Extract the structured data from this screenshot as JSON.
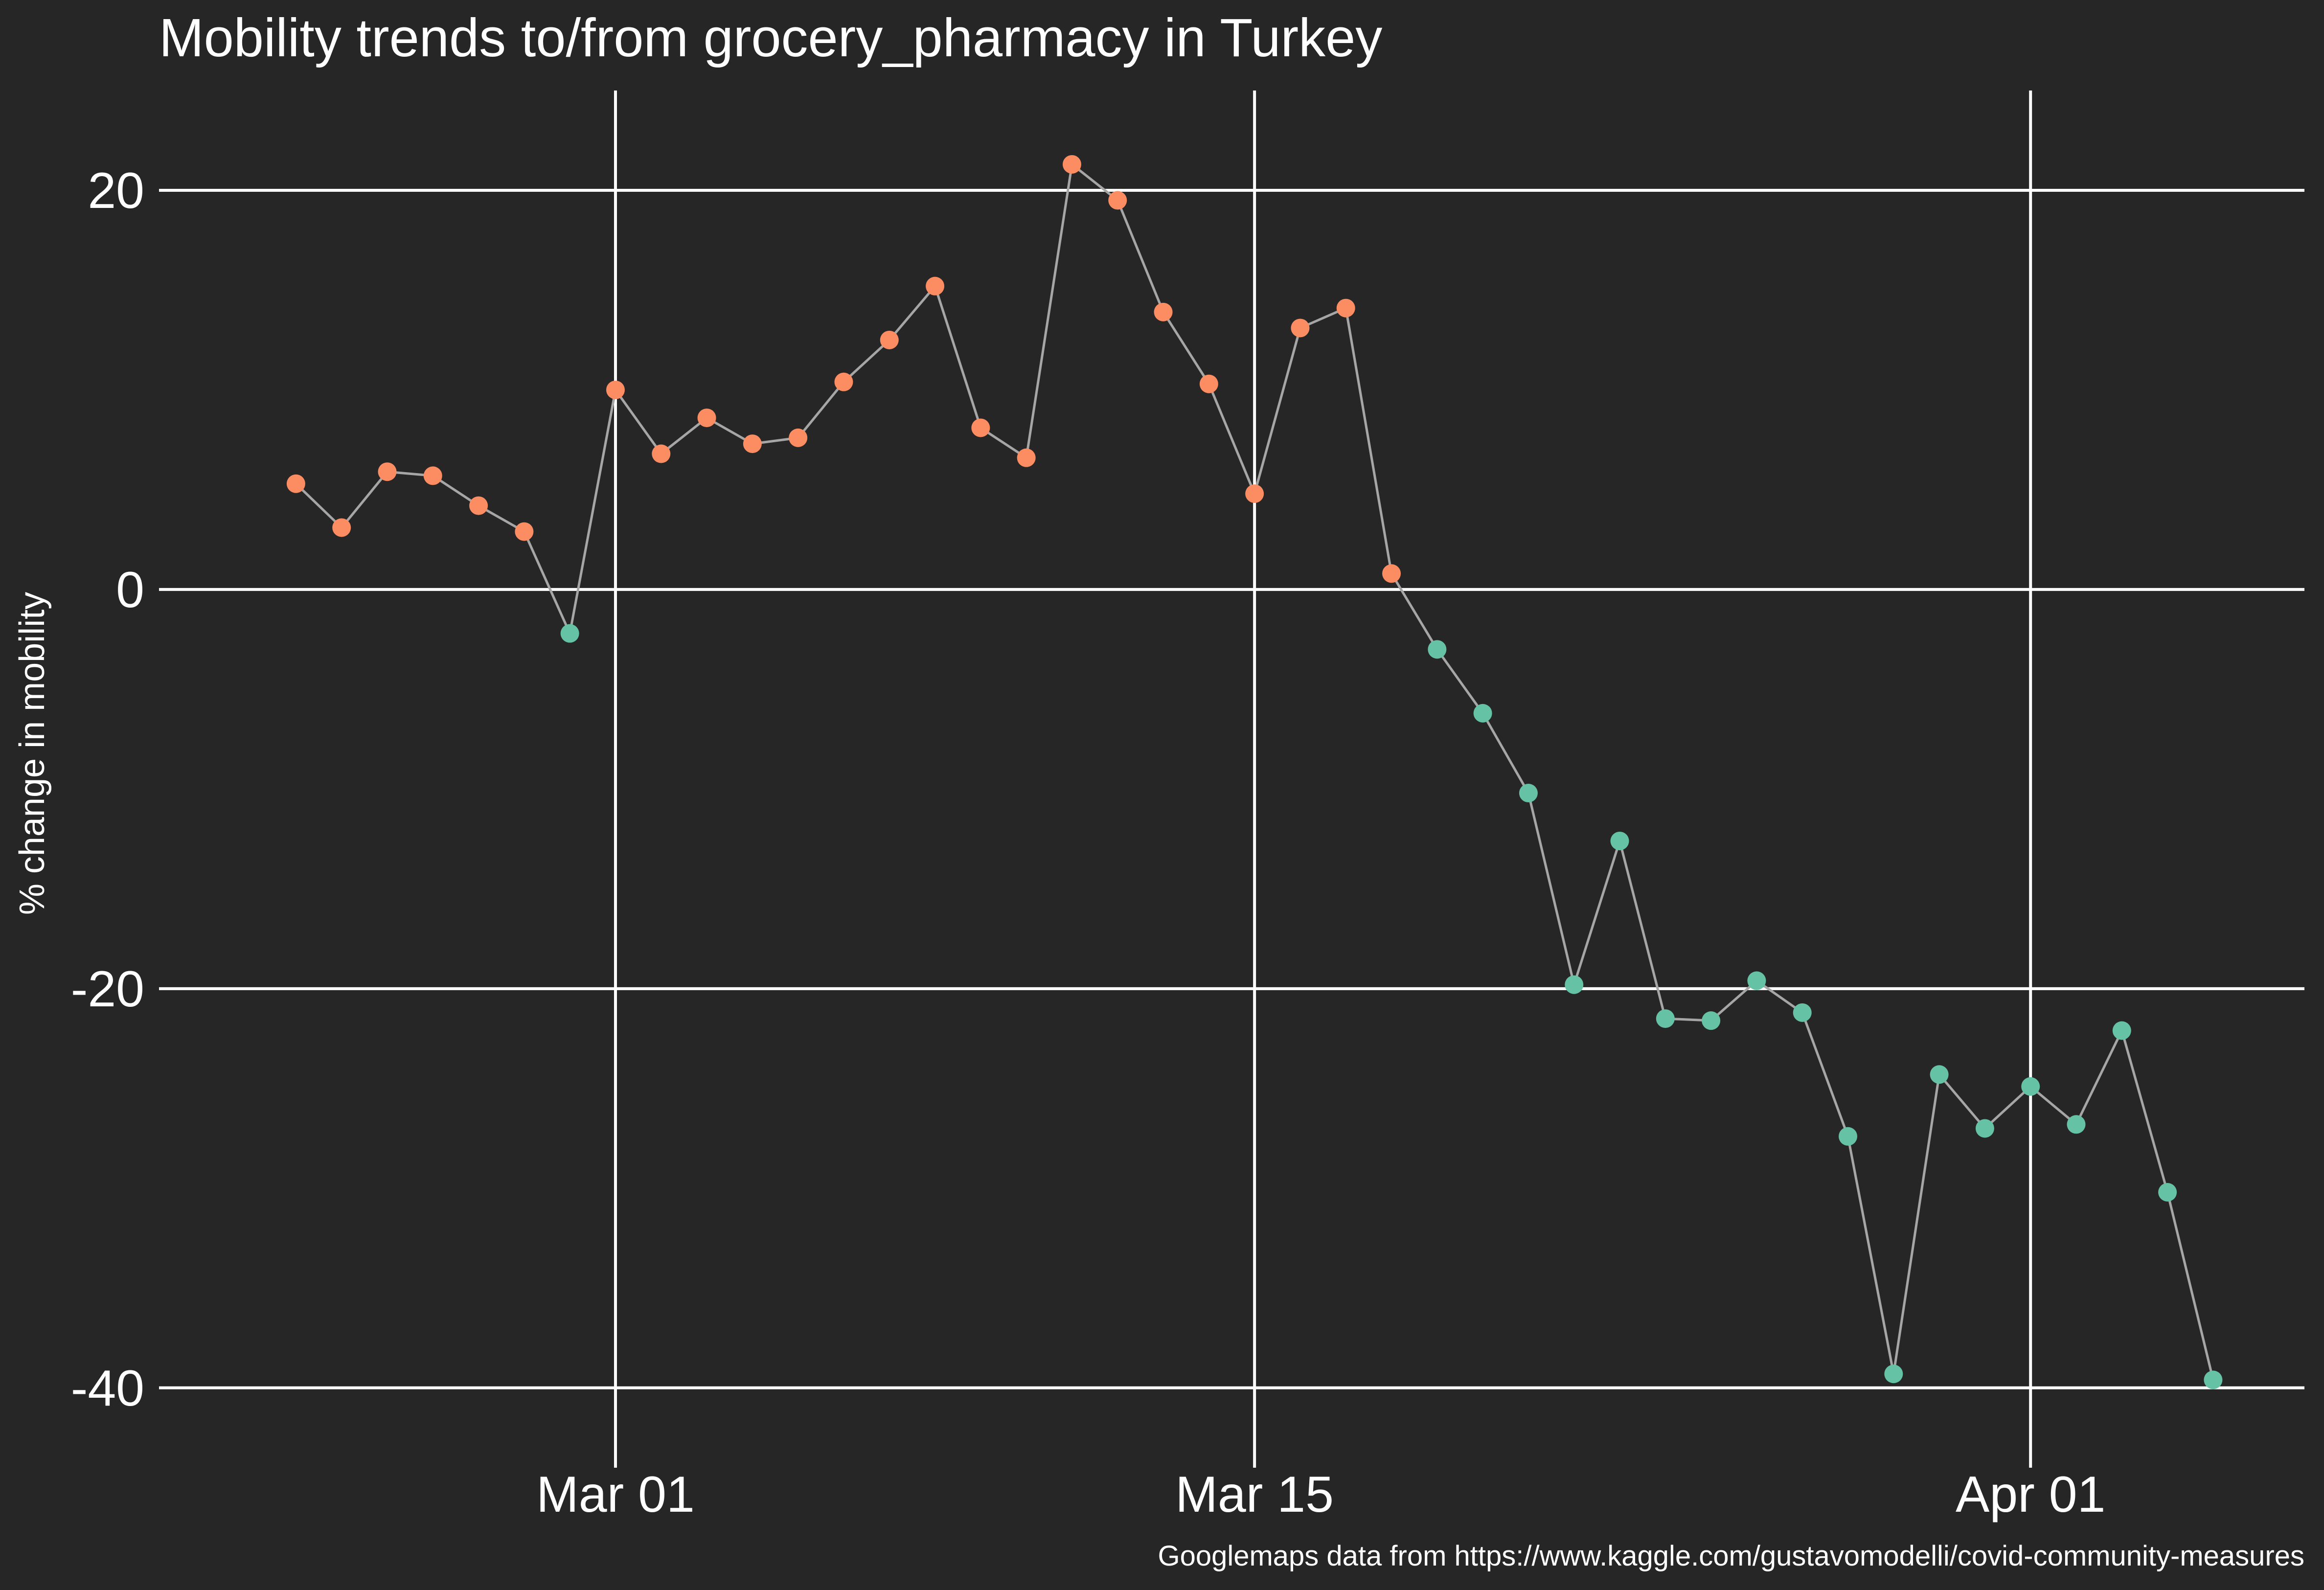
{
  "chart_data": {
    "type": "line",
    "title": "Mobility trends to/from grocery_pharmacy in Turkey",
    "xlabel": "",
    "ylabel": "% change in mobility",
    "caption": "Googlemaps data from https://www.kaggle.com/gustavomodelli/covid-community-measures",
    "x_tick_labels": [
      {
        "date": "2020-03-01",
        "label": "Mar 01"
      },
      {
        "date": "2020-03-15",
        "label": "Mar 15"
      },
      {
        "date": "2020-04-01",
        "label": "Apr 01"
      }
    ],
    "y_ticks": [
      20,
      0,
      -20,
      -40
    ],
    "ylim": [
      -44,
      25
    ],
    "xlim": [
      "2020-02-20",
      "2020-04-07"
    ],
    "grid": true,
    "colors": {
      "background": "#262626",
      "positive": "#fc8d62",
      "negative": "#66c2a5",
      "line": "#a6a6a6",
      "grid": "#ffffff",
      "text": "#ffffff"
    },
    "series": [
      {
        "x": [
          "2020-02-23",
          "2020-02-24",
          "2020-02-25",
          "2020-02-26",
          "2020-02-27",
          "2020-02-28",
          "2020-02-29",
          "2020-03-01",
          "2020-03-02",
          "2020-03-03",
          "2020-03-04",
          "2020-03-05",
          "2020-03-06",
          "2020-03-07",
          "2020-03-08",
          "2020-03-09",
          "2020-03-10",
          "2020-03-11",
          "2020-03-12",
          "2020-03-13",
          "2020-03-14",
          "2020-03-15",
          "2020-03-16",
          "2020-03-17",
          "2020-03-18",
          "2020-03-19",
          "2020-03-20",
          "2020-03-21",
          "2020-03-22",
          "2020-03-23",
          "2020-03-24",
          "2020-03-25",
          "2020-03-26",
          "2020-03-27",
          "2020-03-28",
          "2020-03-29",
          "2020-03-30",
          "2020-03-31",
          "2020-04-01",
          "2020-04-02",
          "2020-04-03",
          "2020-04-04",
          "2020-04-05"
        ],
        "values": [
          5.3,
          3.1,
          5.9,
          5.7,
          4.2,
          2.9,
          -2.2,
          10.0,
          6.8,
          8.6,
          7.3,
          7.6,
          10.4,
          12.5,
          15.2,
          8.1,
          6.6,
          21.3,
          19.5,
          13.9,
          10.3,
          4.8,
          13.1,
          14.1,
          0.8,
          -3.0,
          -6.2,
          -10.2,
          -19.8,
          -12.6,
          -21.5,
          -21.6,
          -19.6,
          -21.2,
          -27.4,
          -39.3,
          -24.3,
          -27.0,
          -24.9,
          -26.8,
          -22.1,
          -30.2,
          -39.6
        ]
      }
    ]
  }
}
